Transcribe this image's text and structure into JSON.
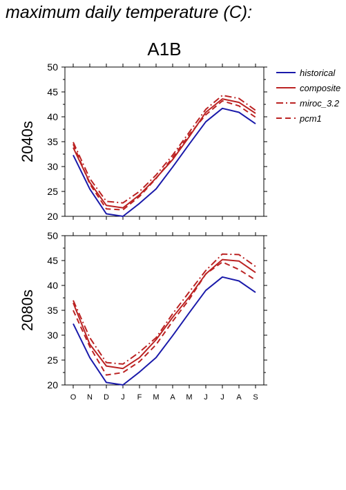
{
  "page": {
    "title": "maximum daily temperature (C):",
    "scenario": "A1B"
  },
  "legend": {
    "placement": "right",
    "items": [
      {
        "label": "historical",
        "color": "#1a1aaa",
        "dash": "solid"
      },
      {
        "label": "composite",
        "color": "#bb2222",
        "dash": "solid"
      },
      {
        "label": "miroc_3.2",
        "color": "#bb2222",
        "dash": "dashdot"
      },
      {
        "label": "pcm1",
        "color": "#bb2222",
        "dash": "dashed"
      }
    ]
  },
  "chart_data": [
    {
      "type": "line",
      "ylabel": "2040s",
      "xlabel": "",
      "categories": [
        "O",
        "N",
        "D",
        "J",
        "F",
        "M",
        "A",
        "M",
        "J",
        "J",
        "A",
        "S"
      ],
      "ylim": [
        20,
        50
      ],
      "yticks": [
        20,
        25,
        30,
        35,
        40,
        45,
        50
      ],
      "series": [
        {
          "name": "historical",
          "values": [
            32.3,
            25.5,
            20.5,
            20.0,
            22.6,
            25.5,
            29.9,
            34.5,
            39.0,
            41.7,
            40.9,
            38.6
          ]
        },
        {
          "name": "composite",
          "values": [
            33.8,
            26.8,
            22.2,
            21.7,
            24.3,
            27.7,
            31.4,
            36.0,
            40.9,
            43.6,
            42.9,
            40.7
          ]
        },
        {
          "name": "miroc_3.2",
          "values": [
            34.9,
            27.6,
            23.0,
            22.7,
            25.0,
            28.3,
            32.3,
            36.9,
            41.5,
            44.3,
            43.7,
            41.3
          ]
        },
        {
          "name": "pcm1",
          "values": [
            34.5,
            26.5,
            21.5,
            21.3,
            24.0,
            27.6,
            31.8,
            36.4,
            40.4,
            43.2,
            42.2,
            39.9
          ]
        }
      ]
    },
    {
      "type": "line",
      "ylabel": "2080s",
      "xlabel": "",
      "categories": [
        "O",
        "N",
        "D",
        "J",
        "F",
        "M",
        "A",
        "M",
        "J",
        "J",
        "A",
        "S"
      ],
      "ylim": [
        20,
        50
      ],
      "yticks": [
        20,
        25,
        30,
        35,
        40,
        45,
        50
      ],
      "series": [
        {
          "name": "historical",
          "values": [
            32.3,
            25.5,
            20.5,
            20.0,
            22.6,
            25.5,
            29.9,
            34.5,
            39.0,
            41.7,
            40.9,
            38.6
          ]
        },
        {
          "name": "composite",
          "values": [
            36.5,
            28.2,
            23.8,
            23.3,
            25.5,
            29.1,
            33.6,
            37.7,
            42.3,
            45.2,
            44.9,
            42.6
          ]
        },
        {
          "name": "miroc_3.2",
          "values": [
            37.0,
            29.5,
            24.5,
            24.2,
            26.6,
            29.5,
            34.3,
            38.7,
            43.0,
            46.3,
            46.2,
            43.8
          ]
        },
        {
          "name": "pcm1",
          "values": [
            35.0,
            27.7,
            22.0,
            22.5,
            24.7,
            28.1,
            32.8,
            37.2,
            42.3,
            44.7,
            43.2,
            41.1
          ]
        }
      ]
    }
  ]
}
